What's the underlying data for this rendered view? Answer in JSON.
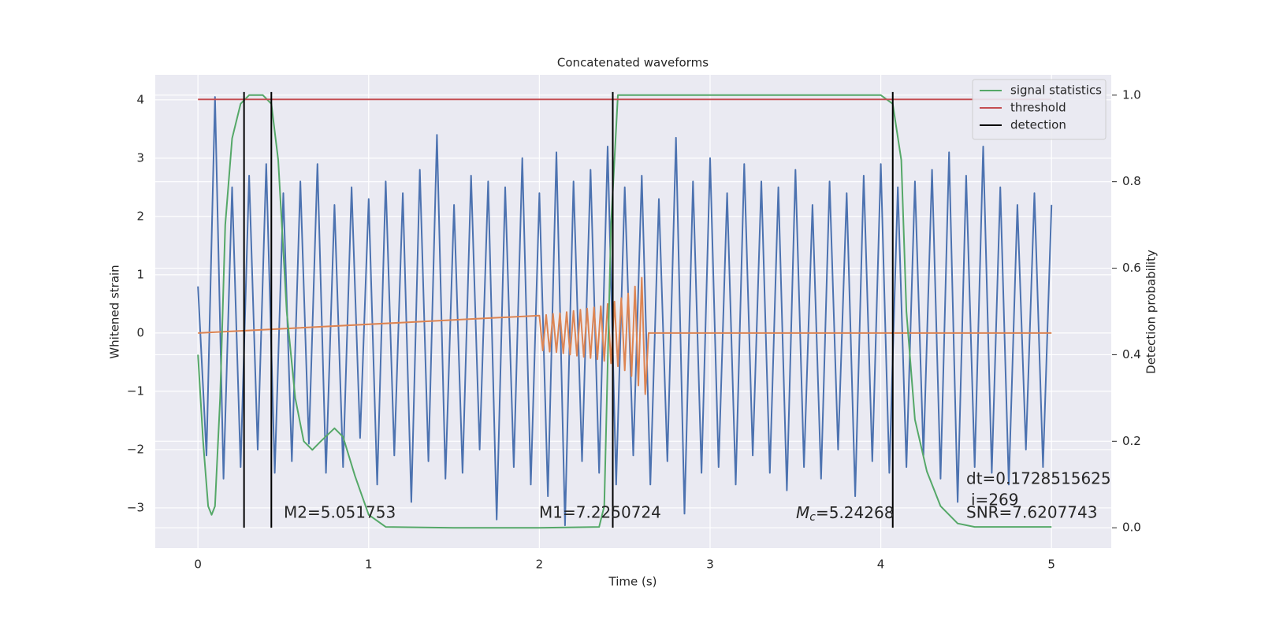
{
  "chart_data": {
    "type": "line",
    "title": "Concatenated waveforms",
    "xlabel": "Time (s)",
    "ylabel": "Whitened strain",
    "y2label": "Detection probability",
    "xlim": [
      -0.25,
      5.35
    ],
    "ylim": [
      -3.69,
      4.43
    ],
    "y2lim": [
      -0.047,
      1.047
    ],
    "xticks": [
      0,
      1,
      2,
      3,
      4,
      5
    ],
    "yticks": [
      {
        "value": -3,
        "label": "−3"
      },
      {
        "value": -2,
        "label": "−2"
      },
      {
        "value": -1,
        "label": "−1"
      },
      0,
      1,
      2,
      3,
      4
    ],
    "y2ticks": [
      {
        "value": 0,
        "label": "0.0"
      },
      {
        "value": 0.2,
        "label": "0.2"
      },
      {
        "value": 0.4,
        "label": "0.4"
      },
      {
        "value": 0.6,
        "label": "0.6"
      },
      {
        "value": 0.8,
        "label": "0.8"
      },
      {
        "value": 1,
        "label": "1.0"
      }
    ],
    "grid": true,
    "legend": "upper right",
    "series": [
      {
        "color": "#4c72b0",
        "x": [
          0,
          0.05,
          0.1,
          0.15,
          0.2,
          0.25,
          0.3,
          0.35,
          0.4,
          0.45,
          0.5,
          0.55,
          0.6,
          0.65,
          0.7,
          0.75,
          0.8,
          0.85,
          0.9,
          0.95,
          1,
          1.05,
          1.1,
          1.15,
          1.2,
          1.25,
          1.3,
          1.35,
          1.4,
          1.45,
          1.5,
          1.55,
          1.6,
          1.65,
          1.7,
          1.75,
          1.8,
          1.85,
          1.9,
          1.95,
          2,
          2.05,
          2.1,
          2.15,
          2.2,
          2.25,
          2.3,
          2.35,
          2.4,
          2.45,
          2.5,
          2.55,
          2.6,
          2.65,
          2.7,
          2.75,
          2.8,
          2.85,
          2.9,
          2.95,
          3,
          3.05,
          3.1,
          3.15,
          3.2,
          3.25,
          3.3,
          3.35,
          3.4,
          3.45,
          3.5,
          3.55,
          3.6,
          3.65,
          3.7,
          3.75,
          3.8,
          3.85,
          3.9,
          3.95,
          4,
          4.05,
          4.1,
          4.15,
          4.2,
          4.25,
          4.3,
          4.35,
          4.4,
          4.45,
          4.5,
          4.55,
          4.6,
          4.65,
          4.7,
          4.75,
          4.8,
          4.85,
          4.9,
          4.95,
          5
        ],
        "values": [
          0.8,
          -2.1,
          4.05,
          -2.5,
          2.5,
          -2.3,
          2.7,
          -2.0,
          2.9,
          -2.4,
          2.4,
          -2.2,
          2.6,
          -1.9,
          2.9,
          -2.4,
          2.2,
          -2.3,
          2.5,
          -1.8,
          2.3,
          -2.6,
          2.6,
          -2.1,
          2.4,
          -2.9,
          2.8,
          -2.2,
          3.4,
          -2.5,
          2.2,
          -2.4,
          2.7,
          -2.0,
          2.6,
          -3.2,
          2.5,
          -2.3,
          3.0,
          -2.6,
          2.4,
          -2.8,
          3.1,
          -3.3,
          2.6,
          -2.2,
          2.8,
          -2.4,
          3.2,
          -2.6,
          2.5,
          -2.1,
          2.7,
          -2.6,
          2.3,
          -2.2,
          3.35,
          -3.1,
          2.6,
          -2.4,
          3.0,
          -2.3,
          2.4,
          -2.6,
          2.9,
          -2.1,
          2.6,
          -2.4,
          2.5,
          -2.7,
          2.8,
          -2.3,
          2.2,
          -2.5,
          2.6,
          -2.0,
          2.4,
          -2.8,
          2.7,
          -2.2,
          2.9,
          -2.4,
          2.5,
          -2.3,
          2.6,
          -2.1,
          2.8,
          -2.5,
          3.1,
          -2.9,
          2.7,
          -2.3,
          3.2,
          -2.4,
          2.5,
          -2.6,
          2.2,
          -2.0,
          2.4,
          -2.3,
          2.2
        ]
      },
      {
        "color": "#dd8452",
        "x": [
          0,
          2,
          2.02,
          2.04,
          2.06,
          2.08,
          2.1,
          2.12,
          2.14,
          2.16,
          2.18,
          2.2,
          2.22,
          2.24,
          2.26,
          2.28,
          2.3,
          2.32,
          2.34,
          2.36,
          2.38,
          2.4,
          2.42,
          2.44,
          2.46,
          2.48,
          2.5,
          2.52,
          2.54,
          2.56,
          2.58,
          2.6,
          2.62,
          2.64,
          5
        ],
        "values": [
          0,
          0.3,
          -0.3,
          0.31,
          -0.32,
          0.33,
          -0.33,
          0.34,
          -0.35,
          0.36,
          -0.37,
          0.38,
          -0.39,
          0.4,
          -0.41,
          0.42,
          -0.43,
          0.44,
          -0.45,
          0.46,
          -0.48,
          0.5,
          -0.52,
          0.54,
          -0.57,
          0.6,
          -0.64,
          0.68,
          -0.74,
          0.8,
          -0.9,
          0.95,
          -1.05,
          0,
          0
        ]
      },
      {
        "name": "signal statistics",
        "color": "#55a868",
        "axis": "y2",
        "x": [
          0,
          0.03,
          0.06,
          0.08,
          0.1,
          0.13,
          0.16,
          0.2,
          0.25,
          0.3,
          0.38,
          0.43,
          0.47,
          0.52,
          0.57,
          0.62,
          0.67,
          0.72,
          0.8,
          0.85,
          0.92,
          1,
          1.1,
          1.5,
          2,
          2.35,
          2.38,
          2.42,
          2.46,
          2.6,
          3.5,
          4,
          4.07,
          4.12,
          4.15,
          4.2,
          4.27,
          4.35,
          4.45,
          4.55,
          5
        ],
        "values": [
          0.4,
          0.2,
          0.05,
          0.03,
          0.05,
          0.3,
          0.7,
          0.9,
          0.98,
          1,
          1,
          0.98,
          0.85,
          0.5,
          0.3,
          0.2,
          0.18,
          0.2,
          0.23,
          0.21,
          0.12,
          0.03,
          0.002,
          0,
          0,
          0.002,
          0.05,
          0.7,
          1,
          1,
          1,
          1,
          0.98,
          0.85,
          0.5,
          0.25,
          0.13,
          0.05,
          0.01,
          0.002,
          0.002
        ]
      },
      {
        "name": "threshold",
        "color": "#c44e52",
        "axis": "y2",
        "x": [
          0,
          5
        ],
        "values": [
          0.99,
          0.99
        ]
      },
      {
        "name": "detection",
        "color": "#000000",
        "x": [
          0.27,
          0.43,
          2.43,
          4.07
        ]
      }
    ],
    "annotations": [
      "M2=5.051753",
      "M1=7.2250724",
      {
        "italic": "M",
        "sub": "c",
        "text": "=5.24268"
      },
      "dt=0.1728515625",
      "i=269",
      "SNR=7.6207743"
    ]
  }
}
